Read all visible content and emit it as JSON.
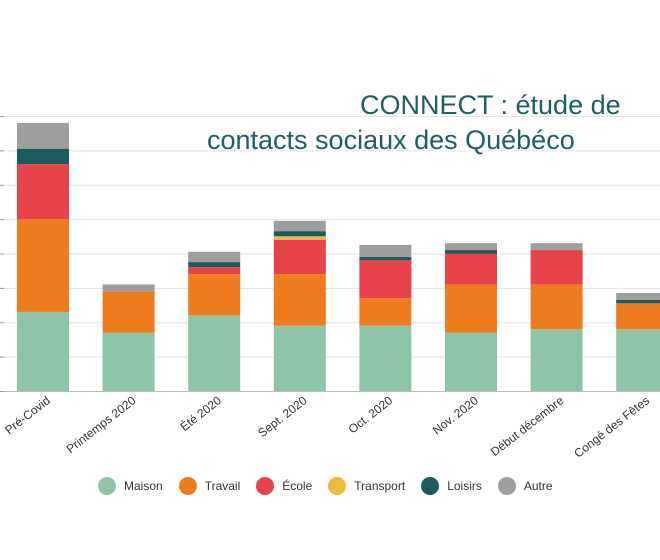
{
  "chart_data": {
    "type": "bar",
    "stacked": true,
    "title": "CONNECT : étude de",
    "subtitle": "contacts sociaux des Québéco",
    "categories": [
      "Pré-Covid",
      "Printemps 2020",
      "Été 2020",
      "Sept. 2020",
      "Oct. 2020",
      "Nov. 2020",
      "Début décembre",
      "Congé des Fêtes"
    ],
    "series": [
      {
        "name": "Maison",
        "color": "#8ec5a8",
        "values": [
          2.3,
          1.7,
          2.2,
          1.9,
          1.9,
          1.7,
          1.8,
          1.8
        ]
      },
      {
        "name": "Travail",
        "color": "#ef7b1f",
        "values": [
          2.7,
          1.2,
          1.2,
          1.5,
          0.8,
          1.4,
          1.3,
          0.75
        ]
      },
      {
        "name": "École",
        "color": "#e8424b",
        "values": [
          1.6,
          0.0,
          0.2,
          1.0,
          1.1,
          0.9,
          1.0,
          0.0
        ]
      },
      {
        "name": "Transport",
        "color": "#f0b93f",
        "values": [
          0.0,
          0.0,
          0.0,
          0.1,
          0.0,
          0.0,
          0.0,
          0.0
        ]
      },
      {
        "name": "Loisirs",
        "color": "#1a5c5b",
        "values": [
          0.45,
          0.0,
          0.15,
          0.15,
          0.1,
          0.1,
          0.0,
          0.1
        ]
      },
      {
        "name": "Autre",
        "color": "#9e9e9e",
        "values": [
          0.75,
          0.2,
          0.3,
          0.3,
          0.35,
          0.2,
          0.2,
          0.2
        ]
      }
    ],
    "ylim": [
      0,
      8
    ],
    "ytick_step": 1,
    "grid": true,
    "legend_position": "bottom"
  }
}
